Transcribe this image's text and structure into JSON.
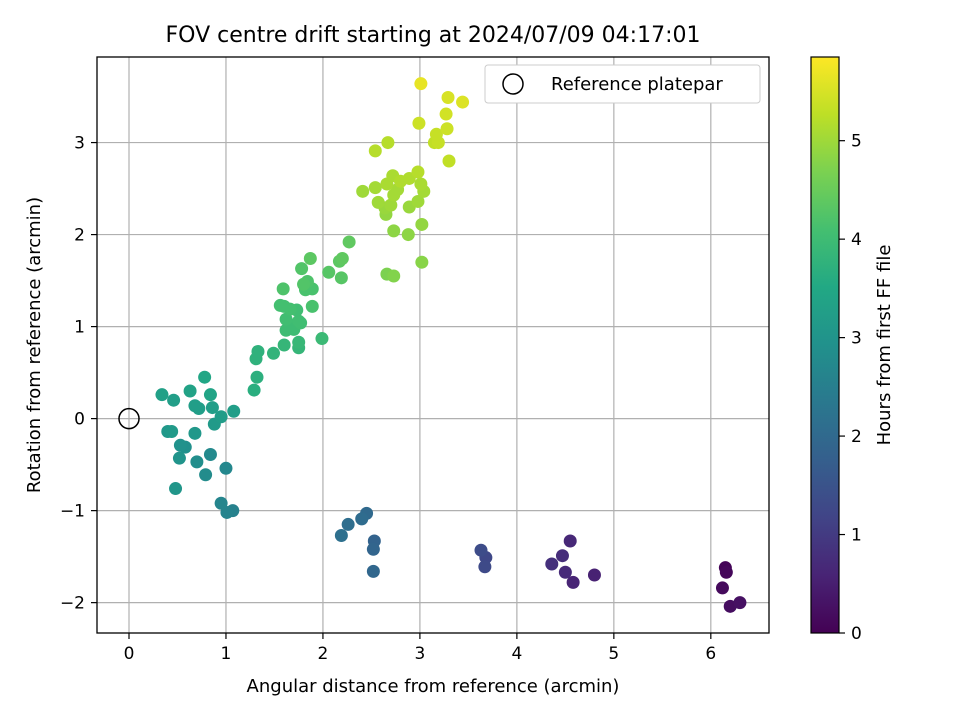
{
  "chart_data": {
    "type": "scatter",
    "title": "FOV centre drift starting at 2024/07/09 04:17:01",
    "xlabel": "Angular distance from reference (arcmin)",
    "ylabel": "Rotation from reference (arcmin)",
    "xlim": [
      -0.33,
      6.6
    ],
    "ylim": [
      -2.33,
      3.93
    ],
    "xticks": [
      0,
      1,
      2,
      3,
      4,
      5,
      6
    ],
    "yticks": [
      -2,
      -1,
      0,
      1,
      2,
      3
    ],
    "grid": true,
    "legend": {
      "placement": "top-right",
      "entries": [
        "Reference platepar"
      ]
    },
    "reference_point": {
      "label": "Reference platepar",
      "x": 0,
      "y": 0
    },
    "colorbar": {
      "label": "Hours from first FF file",
      "colormap": "viridis",
      "range": [
        0,
        5.85
      ],
      "ticks": [
        0,
        1,
        2,
        3,
        4,
        5
      ]
    },
    "points": [
      [
        6.15,
        -1.62,
        0.05
      ],
      [
        6.16,
        -1.67,
        0.1
      ],
      [
        6.12,
        -1.84,
        0.15
      ],
      [
        6.2,
        -2.04,
        0.2
      ],
      [
        6.3,
        -2.0,
        0.25
      ],
      [
        4.8,
        -1.7,
        0.55
      ],
      [
        4.58,
        -1.78,
        0.6
      ],
      [
        4.55,
        -1.33,
        0.65
      ],
      [
        4.5,
        -1.67,
        0.7
      ],
      [
        4.47,
        -1.49,
        0.75
      ],
      [
        4.36,
        -1.58,
        0.8
      ],
      [
        3.68,
        -1.51,
        1.25
      ],
      [
        3.67,
        -1.61,
        1.3
      ],
      [
        3.63,
        -1.43,
        1.35
      ],
      [
        2.53,
        -1.33,
        1.85
      ],
      [
        2.52,
        -1.42,
        1.9
      ],
      [
        2.52,
        -1.66,
        1.95
      ],
      [
        2.45,
        -1.03,
        2.0
      ],
      [
        2.4,
        -1.09,
        2.05
      ],
      [
        2.26,
        -1.15,
        2.1
      ],
      [
        2.19,
        -1.27,
        2.15
      ],
      [
        1.07,
        -1.0,
        2.55
      ],
      [
        1.01,
        -1.02,
        2.6
      ],
      [
        0.95,
        -0.92,
        2.65
      ],
      [
        1.0,
        -0.54,
        2.7
      ],
      [
        0.84,
        -0.39,
        2.75
      ],
      [
        0.79,
        -0.61,
        2.8
      ],
      [
        0.7,
        -0.47,
        2.85
      ],
      [
        0.58,
        -0.31,
        2.9
      ],
      [
        0.53,
        -0.29,
        2.95
      ],
      [
        0.52,
        -0.43,
        3.0
      ],
      [
        0.48,
        -0.76,
        3.05
      ],
      [
        0.68,
        -0.16,
        3.1
      ],
      [
        0.4,
        -0.14,
        3.1
      ],
      [
        0.44,
        -0.14,
        3.15
      ],
      [
        0.88,
        -0.06,
        3.15
      ],
      [
        0.95,
        0.02,
        3.2
      ],
      [
        1.08,
        0.08,
        3.25
      ],
      [
        0.86,
        0.12,
        3.25
      ],
      [
        0.72,
        0.11,
        3.25
      ],
      [
        0.68,
        0.14,
        3.25
      ],
      [
        0.46,
        0.2,
        3.25
      ],
      [
        0.34,
        0.26,
        3.3
      ],
      [
        0.63,
        0.3,
        3.35
      ],
      [
        0.84,
        0.26,
        3.4
      ],
      [
        0.78,
        0.45,
        3.45
      ],
      [
        1.29,
        0.31,
        3.65
      ],
      [
        1.32,
        0.45,
        3.7
      ],
      [
        1.31,
        0.65,
        3.75
      ],
      [
        1.33,
        0.73,
        3.75
      ],
      [
        1.49,
        0.71,
        3.8
      ],
      [
        1.6,
        0.8,
        3.85
      ],
      [
        1.75,
        0.77,
        3.85
      ],
      [
        1.75,
        0.83,
        3.9
      ],
      [
        1.99,
        0.87,
        3.95
      ],
      [
        1.62,
        0.96,
        4.0
      ],
      [
        1.7,
        0.97,
        4.0
      ],
      [
        1.65,
        1.01,
        4.0
      ],
      [
        1.77,
        1.04,
        4.05
      ],
      [
        1.75,
        1.06,
        4.05
      ],
      [
        1.62,
        1.08,
        4.05
      ],
      [
        1.73,
        1.18,
        4.05
      ],
      [
        1.66,
        1.19,
        4.1
      ],
      [
        1.6,
        1.22,
        4.1
      ],
      [
        1.56,
        1.23,
        4.1
      ],
      [
        1.89,
        1.22,
        4.15
      ],
      [
        1.82,
        1.4,
        4.15
      ],
      [
        1.89,
        1.41,
        4.15
      ],
      [
        1.84,
        1.49,
        4.2
      ],
      [
        1.59,
        1.41,
        4.2
      ],
      [
        1.8,
        1.46,
        4.25
      ],
      [
        1.78,
        1.63,
        4.25
      ],
      [
        2.06,
        1.59,
        4.3
      ],
      [
        2.19,
        1.53,
        4.3
      ],
      [
        2.17,
        1.71,
        4.35
      ],
      [
        1.87,
        1.74,
        4.35
      ],
      [
        2.2,
        1.74,
        4.4
      ],
      [
        2.27,
        1.92,
        4.4
      ],
      [
        2.66,
        1.57,
        4.7
      ],
      [
        2.73,
        1.55,
        4.75
      ],
      [
        3.02,
        1.7,
        4.8
      ],
      [
        2.73,
        2.04,
        4.85
      ],
      [
        2.88,
        2.0,
        4.85
      ],
      [
        3.02,
        2.11,
        4.9
      ],
      [
        2.65,
        2.22,
        4.9
      ],
      [
        2.89,
        2.3,
        4.95
      ],
      [
        2.64,
        2.29,
        4.95
      ],
      [
        2.7,
        2.32,
        5.0
      ],
      [
        2.57,
        2.35,
        5.0
      ],
      [
        2.98,
        2.36,
        5.0
      ],
      [
        2.41,
        2.47,
        5.0
      ],
      [
        2.73,
        2.43,
        5.05
      ],
      [
        2.54,
        2.51,
        5.05
      ],
      [
        2.77,
        2.49,
        5.05
      ],
      [
        3.04,
        2.47,
        5.05
      ],
      [
        2.66,
        2.55,
        5.1
      ],
      [
        3.01,
        2.55,
        5.1
      ],
      [
        2.72,
        2.64,
        5.1
      ],
      [
        2.89,
        2.61,
        5.15
      ],
      [
        2.8,
        2.58,
        5.15
      ],
      [
        2.98,
        2.68,
        5.2
      ],
      [
        2.54,
        2.91,
        5.2
      ],
      [
        2.67,
        3.0,
        5.2
      ],
      [
        3.3,
        2.8,
        5.3
      ],
      [
        3.15,
        3.0,
        5.3
      ],
      [
        3.19,
        3.0,
        5.35
      ],
      [
        3.17,
        3.09,
        5.35
      ],
      [
        3.28,
        3.15,
        5.4
      ],
      [
        2.99,
        3.21,
        5.4
      ],
      [
        3.27,
        3.31,
        5.45
      ],
      [
        3.29,
        3.49,
        5.5
      ],
      [
        3.44,
        3.44,
        5.55
      ],
      [
        3.01,
        3.64,
        5.65
      ]
    ]
  }
}
